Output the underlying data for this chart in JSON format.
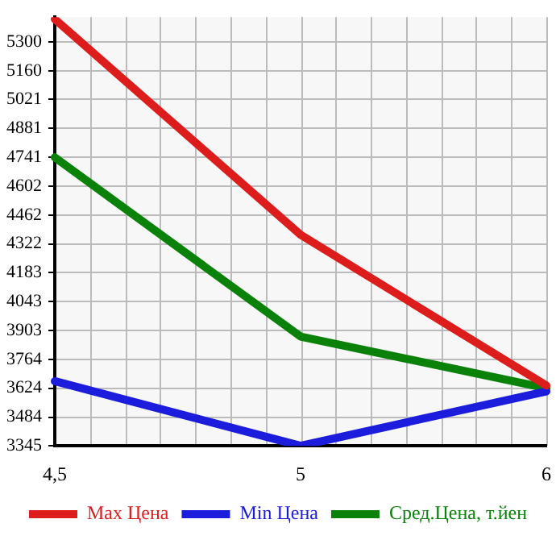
{
  "chart_data": {
    "type": "line",
    "categories": [
      "4,5",
      "5",
      "6"
    ],
    "series": [
      {
        "name": "Max Цена",
        "color": "#dd1c1c",
        "values": [
          5410,
          4367,
          3637
        ]
      },
      {
        "name": "Min Цена",
        "color": "#1c1cdd",
        "values": [
          3658,
          3345,
          3609
        ]
      },
      {
        "name": "Сред.Цена, т.йен",
        "color": "#0a820a",
        "values": [
          4741,
          3874,
          3624
        ]
      }
    ],
    "ylim": [
      3345,
      5420
    ],
    "yticks": [
      3345,
      3484,
      3624,
      3764,
      3903,
      4043,
      4183,
      4322,
      4462,
      4602,
      4741,
      4881,
      5021,
      5160,
      5300
    ],
    "grid": true,
    "legend": "bottom",
    "marker": "none",
    "line_style": "solid"
  }
}
